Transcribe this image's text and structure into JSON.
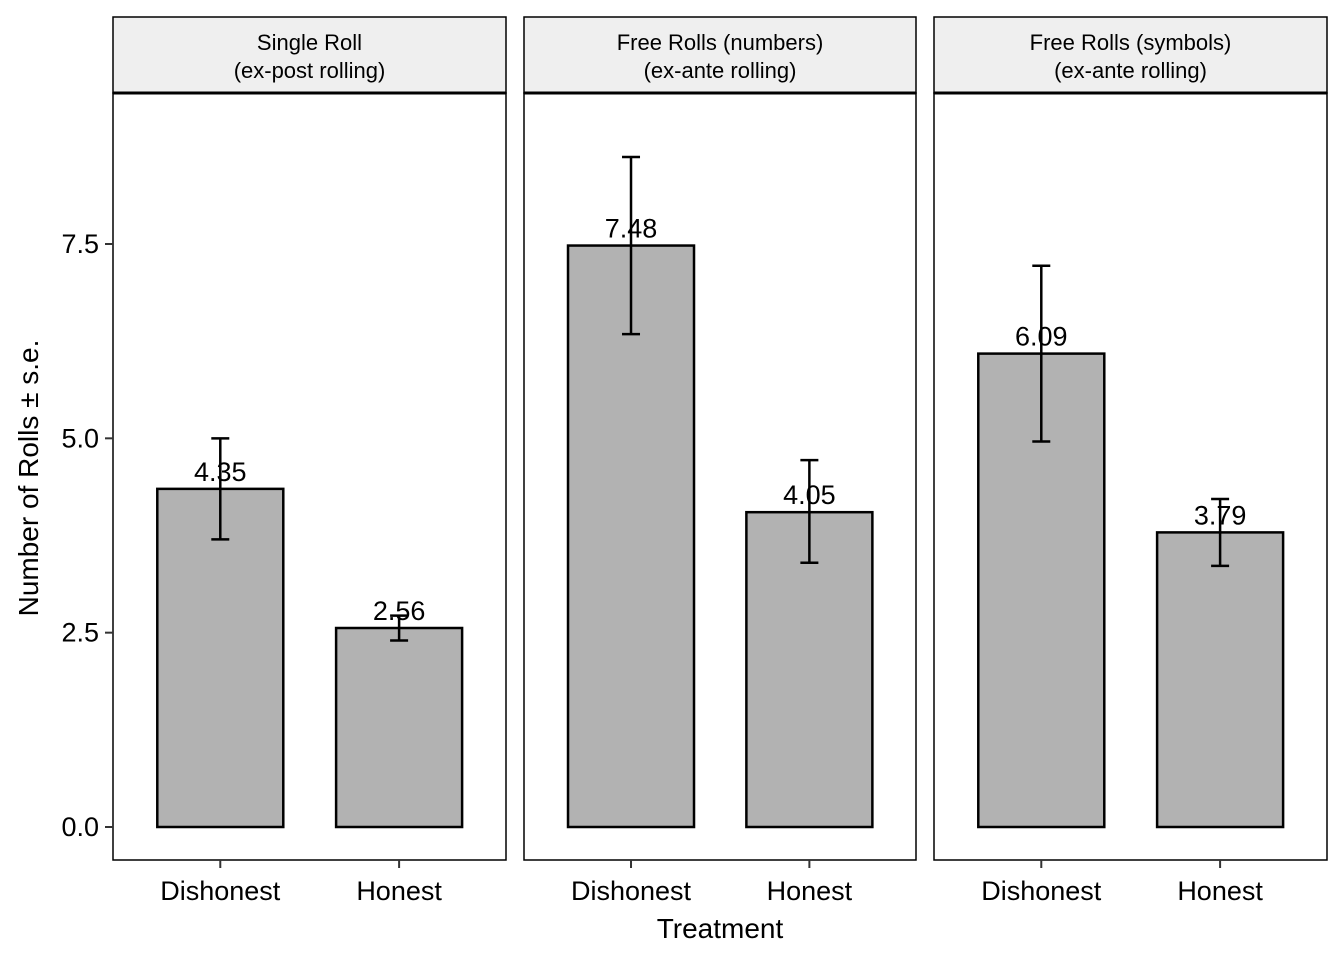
{
  "chart_data": {
    "type": "bar",
    "xlabel": "Treatment",
    "ylabel": "Number of Rolls ± s.e.",
    "ylim": [
      -0.43,
      9.4
    ],
    "yticks": [
      "0.0",
      "2.5",
      "5.0",
      "7.5"
    ],
    "ytick_values": [
      0,
      2.5,
      5,
      7.5
    ],
    "categories": [
      "Dishonest",
      "Honest"
    ],
    "grid": false,
    "colors": {
      "bar_fill": "#b2b2b2",
      "bar_stroke": "#000000",
      "strip_fill": "#efefef",
      "panel_border": "#000000"
    },
    "panels": [
      {
        "title_lines": [
          "Single Roll",
          "(ex-post rolling)"
        ],
        "values": [
          4.35,
          2.56
        ],
        "labels": [
          "4.35",
          "2.56"
        ],
        "error_low": [
          3.7,
          2.4
        ],
        "error_high": [
          5.0,
          2.72
        ]
      },
      {
        "title_lines": [
          "Free Rolls (numbers)",
          "(ex-ante rolling)"
        ],
        "values": [
          7.48,
          4.05
        ],
        "labels": [
          "7.48",
          "4.05"
        ],
        "error_low": [
          6.34,
          3.4
        ],
        "error_high": [
          8.62,
          4.72
        ]
      },
      {
        "title_lines": [
          "Free Rolls (symbols)",
          "(ex-ante rolling)"
        ],
        "values": [
          6.09,
          3.79
        ],
        "labels": [
          "6.09",
          "3.79"
        ],
        "error_low": [
          4.96,
          3.36
        ],
        "error_high": [
          7.22,
          4.22
        ]
      }
    ]
  }
}
